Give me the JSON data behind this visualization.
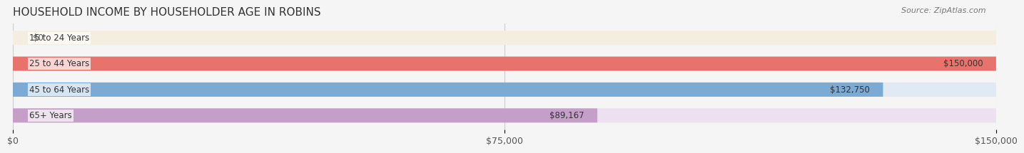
{
  "title": "HOUSEHOLD INCOME BY HOUSEHOLDER AGE IN ROBINS",
  "source": "Source: ZipAtlas.com",
  "categories": [
    "15 to 24 Years",
    "25 to 44 Years",
    "45 to 64 Years",
    "65+ Years"
  ],
  "values": [
    0,
    150000,
    132750,
    89167
  ],
  "bar_colors": [
    "#f5c98a",
    "#e8736c",
    "#7baad4",
    "#c4a0c8"
  ],
  "bar_bg_colors": [
    "#f5ede0",
    "#f5e0de",
    "#e0eaf5",
    "#ede0f0"
  ],
  "xlim": [
    0,
    150000
  ],
  "xticks": [
    0,
    75000,
    150000
  ],
  "xticklabels": [
    "$0",
    "$75,000",
    "$150,000"
  ],
  "value_labels": [
    "$0",
    "$150,000",
    "$132,750",
    "$89,167"
  ],
  "label_bg_color": "#ffffff",
  "title_fontsize": 11,
  "tick_fontsize": 9,
  "bar_label_fontsize": 8.5,
  "category_fontsize": 8.5,
  "background_color": "#f5f5f5"
}
